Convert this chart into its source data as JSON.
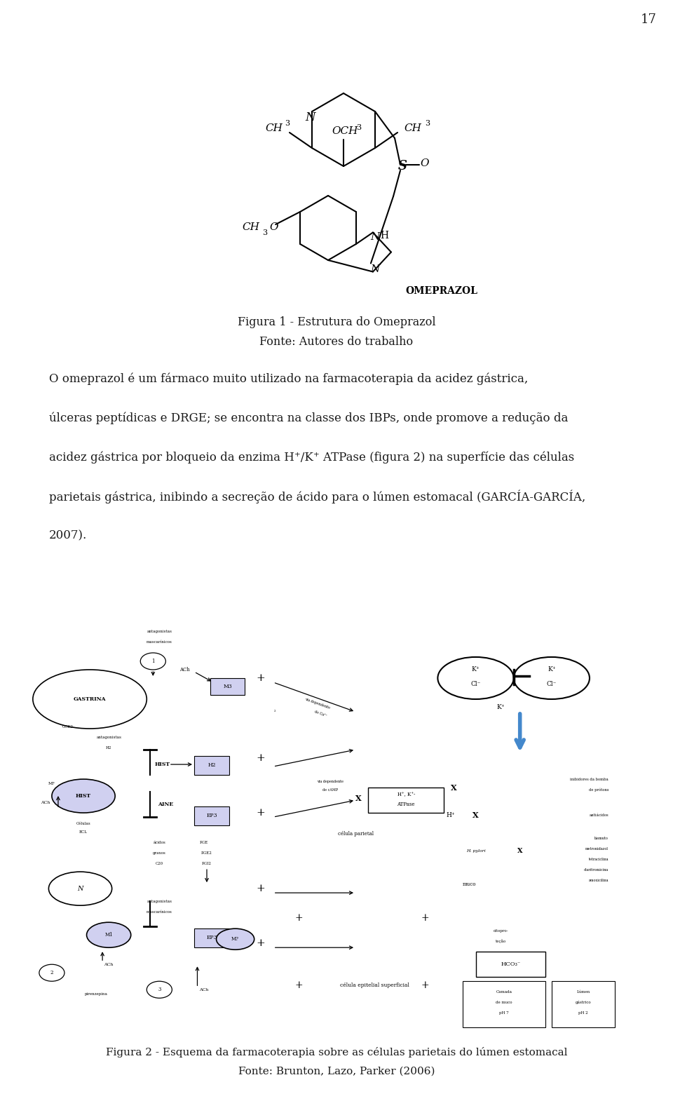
{
  "page_number": "17",
  "figure1_caption_line1": "Figura 1 - Estrutura do Omeprazol",
  "figure1_caption_line2": "Fonte: Autores do trabalho",
  "figure2_caption_line1": "Figura 2 - Esquema da farmacoterapia sobre as células parietais do lúmen estomacal",
  "figure2_caption_line2": "Fonte: Brunton, Lazo, Parker (2006)",
  "paragraph_lines": [
    "O omeprazol é um fármaco muito utilizado na farmacoterapia da acidez gástrica,",
    "",
    "úlceras peptídicas e DRGE; se encontra na classe dos IBPs, onde promove a redução da",
    "",
    "acidez gástrica por bloqueio da enzima H⁺/K⁺ ATPase (figura 2) na superfície das células",
    "",
    "parietais gástrica, inibindo a secreção de ácido para o lúmen estomacal (GARCÍA-GARCÍA,",
    "",
    "2007)."
  ],
  "bg_color": "#ffffff",
  "text_color": "#1a1a1a"
}
